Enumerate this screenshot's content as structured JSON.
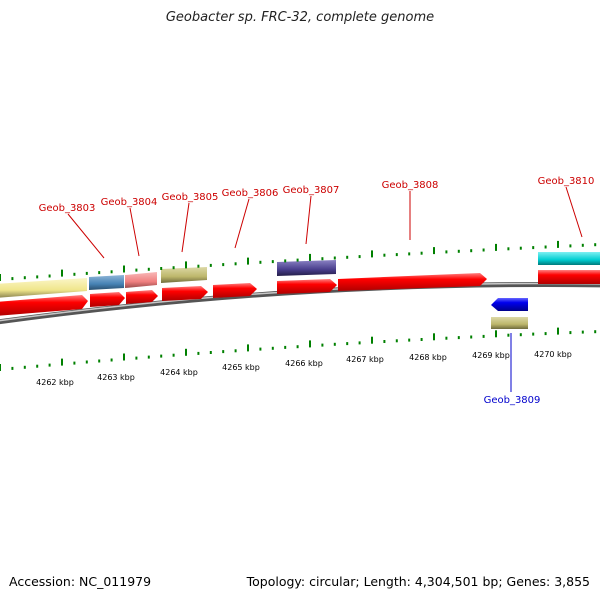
{
  "title": "Geobacter sp. FRC-32, complete genome",
  "footer": {
    "accession": "Accession: NC_011979",
    "summary": "Topology: circular; Length: 4,304,501 bp; Genes: 3,855"
  },
  "axis": {
    "tick_labels": [
      "4262 kbp",
      "4263 kbp",
      "4264 kbp",
      "4265 kbp",
      "4266 kbp",
      "4267 kbp",
      "4268 kbp",
      "4269 kbp",
      "4270 kbp"
    ]
  },
  "gene_labels": {
    "forward": [
      "Geob_3803",
      "Geob_3804",
      "Geob_3805",
      "Geob_3806",
      "Geob_3807",
      "Geob_3808",
      "Geob_3810"
    ],
    "reverse": [
      "Geob_3809"
    ]
  },
  "colors": {
    "forward_gene": "#ff0000",
    "reverse_gene": "#0000ff",
    "forward_label": "#cc0000",
    "reverse_label": "#0000cc",
    "backbone": "#808080",
    "tick": "#008000",
    "cog_yellow": "#f0e68c",
    "cog_steelblue": "#4682b4",
    "cog_salmon": "#f08080",
    "cog_khaki": "#bdb76b",
    "cog_slate": "#483d8b",
    "cog_cyan": "#00ced1"
  }
}
